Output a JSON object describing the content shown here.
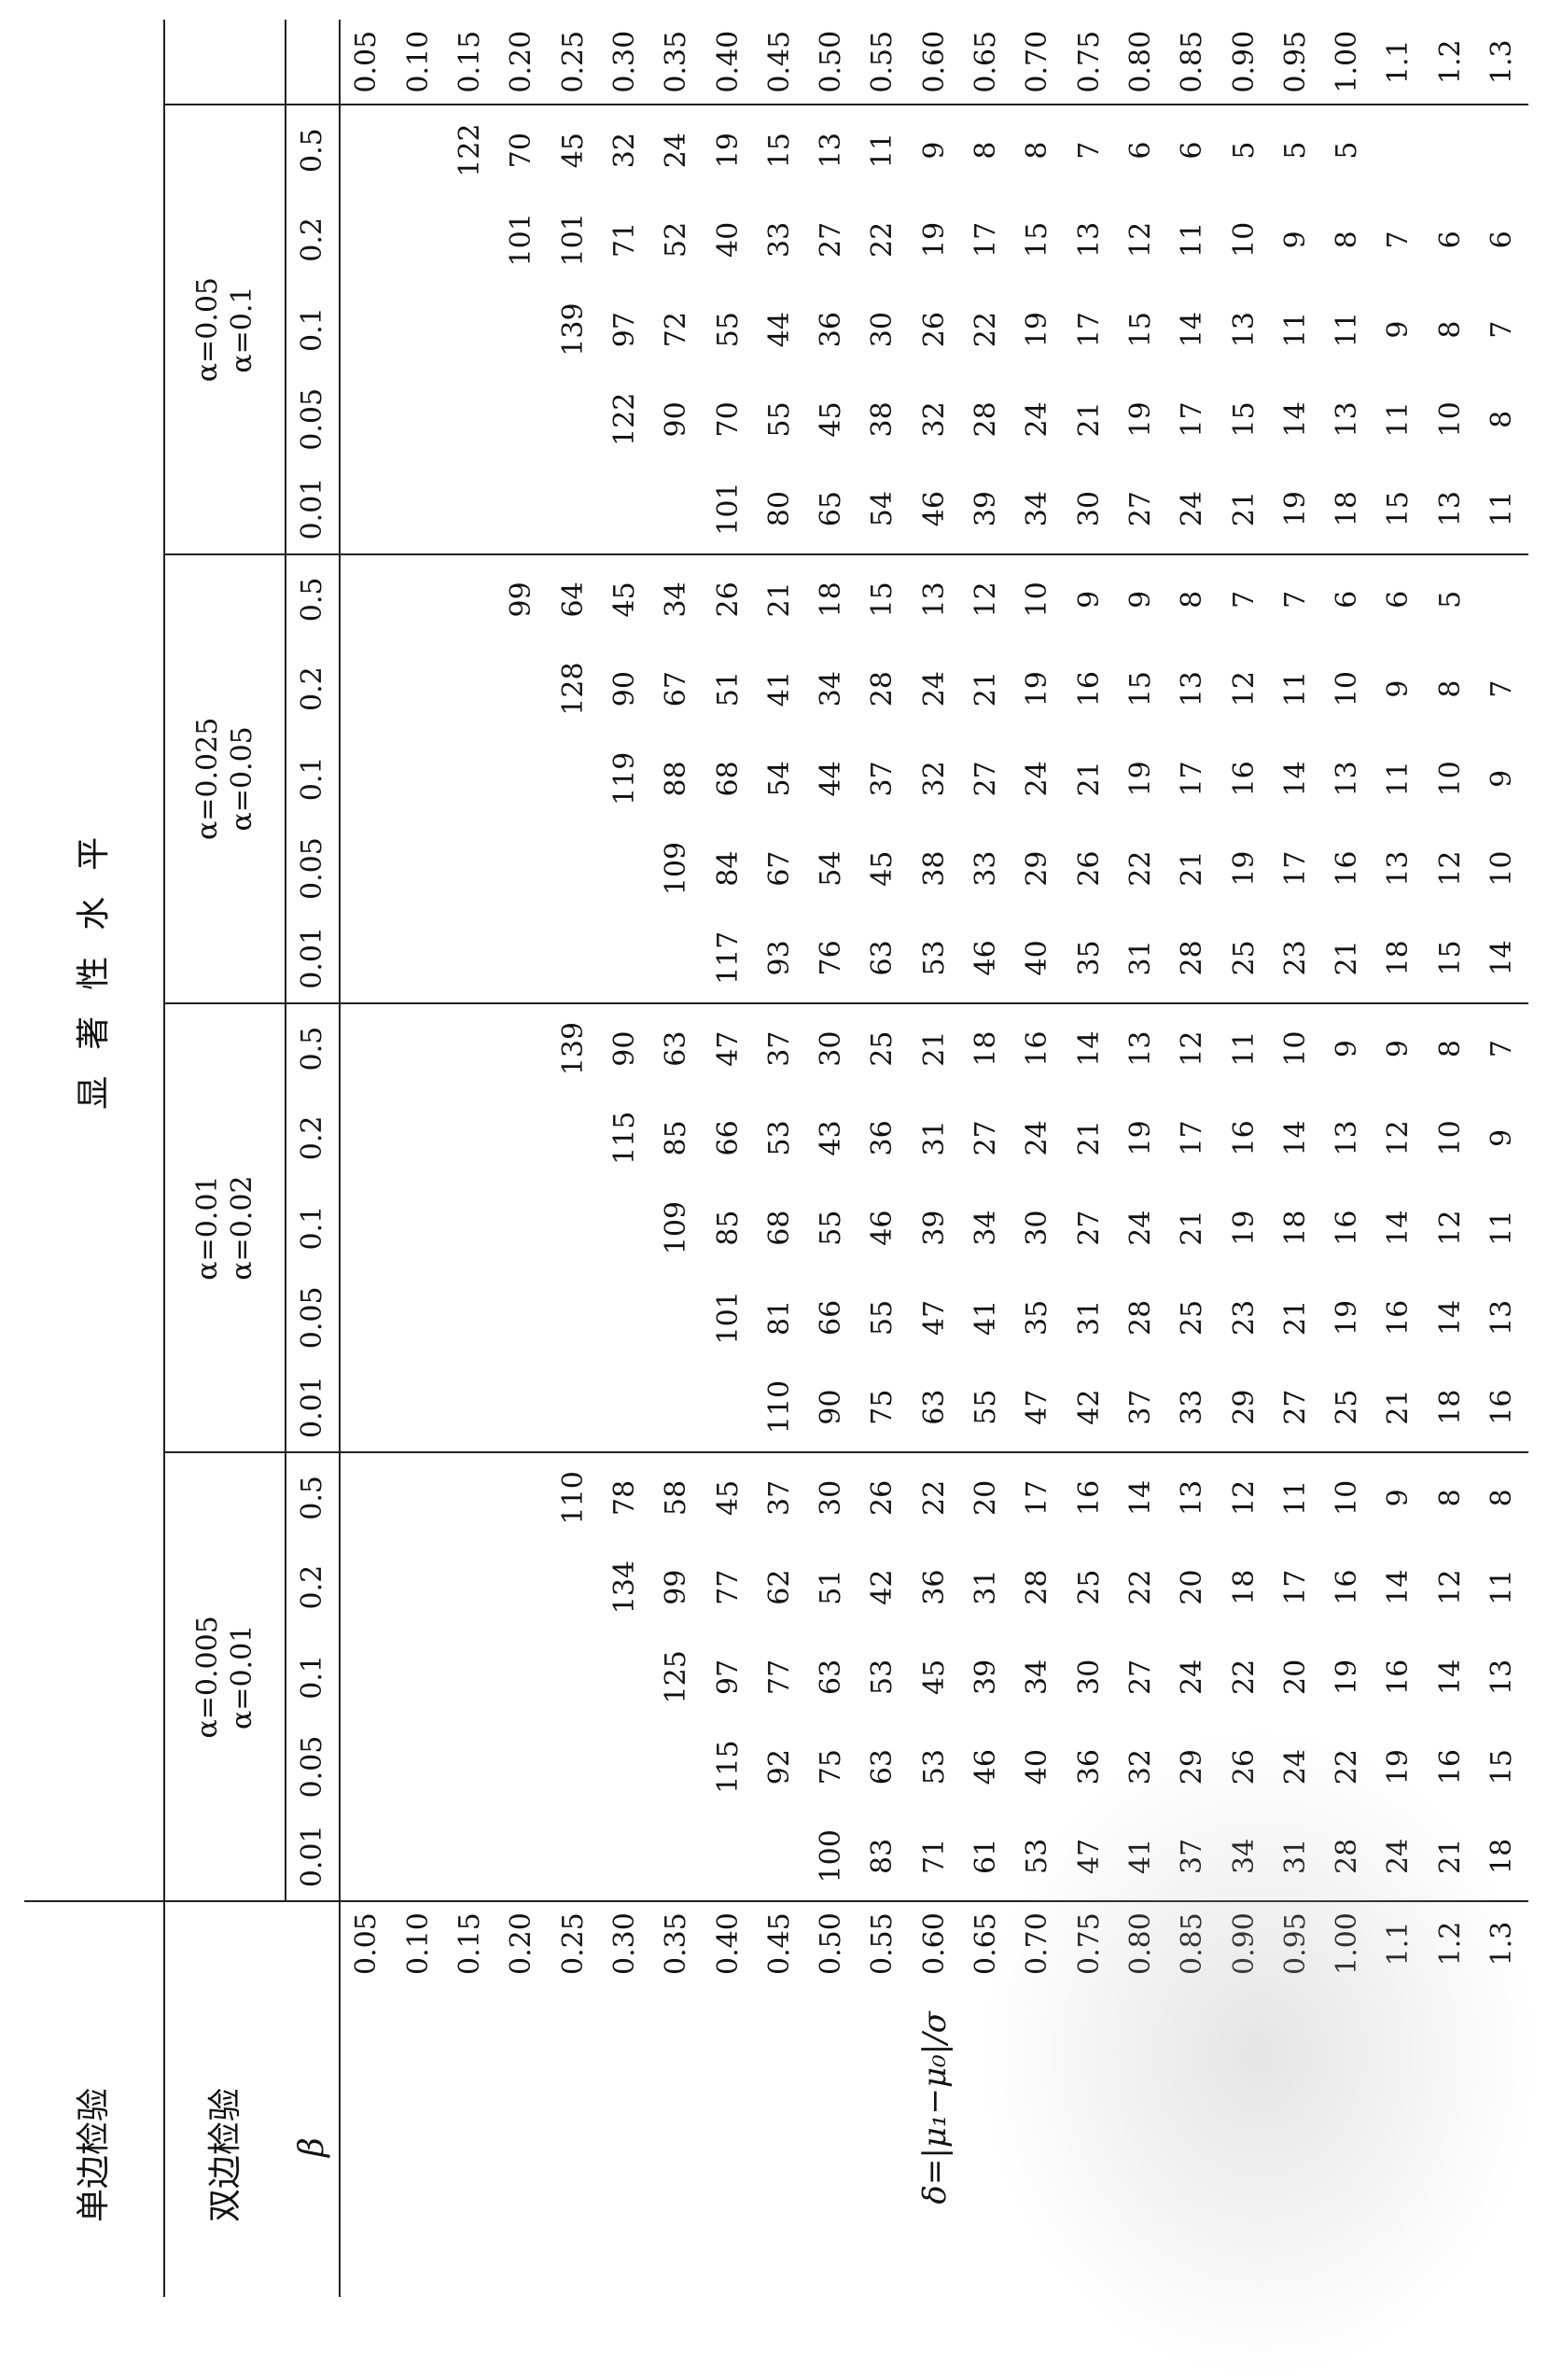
{
  "header": {
    "one_sided": "单边检验",
    "two_sided": "双边检验",
    "beta": "β",
    "significance": "显著性水平",
    "delta_formula": "δ=|μ₁−μ₀|/σ"
  },
  "groups": [
    {
      "a1": "α=0.005",
      "a2": "α=0.01"
    },
    {
      "a1": "α=0.01",
      "a2": "α=0.02"
    },
    {
      "a1": "α=0.025",
      "a2": "α=0.05"
    },
    {
      "a1": "α=0.05",
      "a2": "α=0.1"
    }
  ],
  "beta_values": [
    "0.01",
    "0.05",
    "0.1",
    "0.2",
    "0.5"
  ],
  "rows": [
    {
      "d": "0.05",
      "v": [
        "",
        "",
        "",
        "",
        "",
        "",
        "",
        "",
        "",
        "",
        "",
        "",
        "",
        "",
        "",
        "",
        "",
        "",
        "",
        ""
      ]
    },
    {
      "d": "0.10",
      "v": [
        "",
        "",
        "",
        "",
        "",
        "",
        "",
        "",
        "",
        "",
        "",
        "",
        "",
        "",
        "",
        "",
        "",
        "",
        "",
        ""
      ]
    },
    {
      "d": "0.15",
      "v": [
        "",
        "",
        "",
        "",
        "",
        "",
        "",
        "",
        "",
        "",
        "",
        "",
        "",
        "",
        "",
        "",
        "",
        "",
        "",
        "122"
      ]
    },
    {
      "d": "0.20",
      "v": [
        "",
        "",
        "",
        "",
        "",
        "",
        "",
        "",
        "",
        "",
        "",
        "",
        "",
        "",
        "99",
        "",
        "",
        "",
        "101",
        "70"
      ]
    },
    {
      "d": "0.25",
      "v": [
        "",
        "",
        "",
        "",
        "110",
        "",
        "",
        "",
        "",
        "139",
        "",
        "",
        "",
        "128",
        "64",
        "",
        "",
        "139",
        "101",
        "45"
      ]
    },
    {
      "d": "0.30",
      "v": [
        "",
        "",
        "",
        "134",
        "78",
        "",
        "",
        "",
        "115",
        "90",
        "",
        "",
        "119",
        "90",
        "45",
        "",
        "122",
        "97",
        "71",
        "32"
      ]
    },
    {
      "d": "0.35",
      "v": [
        "",
        "",
        "125",
        "99",
        "58",
        "",
        "",
        "109",
        "85",
        "63",
        "",
        "109",
        "88",
        "67",
        "34",
        "",
        "90",
        "72",
        "52",
        "24"
      ]
    },
    {
      "d": "0.40",
      "v": [
        "",
        "115",
        "97",
        "77",
        "45",
        "",
        "101",
        "85",
        "66",
        "47",
        "117",
        "84",
        "68",
        "51",
        "26",
        "101",
        "70",
        "55",
        "40",
        "19"
      ]
    },
    {
      "d": "0.45",
      "v": [
        "",
        "92",
        "77",
        "62",
        "37",
        "110",
        "81",
        "68",
        "53",
        "37",
        "93",
        "67",
        "54",
        "41",
        "21",
        "80",
        "55",
        "44",
        "33",
        "15"
      ]
    },
    {
      "d": "0.50",
      "v": [
        "100",
        "75",
        "63",
        "51",
        "30",
        "90",
        "66",
        "55",
        "43",
        "30",
        "76",
        "54",
        "44",
        "34",
        "18",
        "65",
        "45",
        "36",
        "27",
        "13"
      ]
    },
    {
      "d": "0.55",
      "v": [
        "83",
        "63",
        "53",
        "42",
        "26",
        "75",
        "55",
        "46",
        "36",
        "25",
        "63",
        "45",
        "37",
        "28",
        "15",
        "54",
        "38",
        "30",
        "22",
        "11"
      ]
    },
    {
      "d": "0.60",
      "v": [
        "71",
        "53",
        "45",
        "36",
        "22",
        "63",
        "47",
        "39",
        "31",
        "21",
        "53",
        "38",
        "32",
        "24",
        "13",
        "46",
        "32",
        "26",
        "19",
        "9"
      ]
    },
    {
      "d": "0.65",
      "v": [
        "61",
        "46",
        "39",
        "31",
        "20",
        "55",
        "41",
        "34",
        "27",
        "18",
        "46",
        "33",
        "27",
        "21",
        "12",
        "39",
        "28",
        "22",
        "17",
        "8"
      ]
    },
    {
      "d": "0.70",
      "v": [
        "53",
        "40",
        "34",
        "28",
        "17",
        "47",
        "35",
        "30",
        "24",
        "16",
        "40",
        "29",
        "24",
        "19",
        "10",
        "34",
        "24",
        "19",
        "15",
        "8"
      ]
    },
    {
      "d": "0.75",
      "v": [
        "47",
        "36",
        "30",
        "25",
        "16",
        "42",
        "31",
        "27",
        "21",
        "14",
        "35",
        "26",
        "21",
        "16",
        "9",
        "30",
        "21",
        "17",
        "13",
        "7"
      ]
    },
    {
      "d": "0.80",
      "v": [
        "41",
        "32",
        "27",
        "22",
        "14",
        "37",
        "28",
        "24",
        "19",
        "13",
        "31",
        "22",
        "19",
        "15",
        "9",
        "27",
        "19",
        "15",
        "12",
        "6"
      ]
    },
    {
      "d": "0.85",
      "v": [
        "37",
        "29",
        "24",
        "20",
        "13",
        "33",
        "25",
        "21",
        "17",
        "12",
        "28",
        "21",
        "17",
        "13",
        "8",
        "24",
        "17",
        "14",
        "11",
        "6"
      ]
    },
    {
      "d": "0.90",
      "v": [
        "34",
        "26",
        "22",
        "18",
        "12",
        "29",
        "23",
        "19",
        "16",
        "11",
        "25",
        "19",
        "16",
        "12",
        "7",
        "21",
        "15",
        "13",
        "10",
        "5"
      ]
    },
    {
      "d": "0.95",
      "v": [
        "31",
        "24",
        "20",
        "17",
        "11",
        "27",
        "21",
        "18",
        "14",
        "10",
        "23",
        "17",
        "14",
        "11",
        "7",
        "19",
        "14",
        "11",
        "9",
        "5"
      ]
    },
    {
      "d": "1.00",
      "v": [
        "28",
        "22",
        "19",
        "16",
        "10",
        "25",
        "19",
        "16",
        "13",
        "9",
        "21",
        "16",
        "13",
        "10",
        "6",
        "18",
        "13",
        "11",
        "8",
        "5"
      ]
    },
    {
      "d": "1.1",
      "v": [
        "24",
        "19",
        "16",
        "14",
        "9",
        "21",
        "16",
        "14",
        "12",
        "9",
        "18",
        "13",
        "11",
        "9",
        "6",
        "15",
        "11",
        "9",
        "7",
        ""
      ]
    },
    {
      "d": "1.2",
      "v": [
        "21",
        "16",
        "14",
        "12",
        "8",
        "18",
        "14",
        "12",
        "10",
        "8",
        "15",
        "12",
        "10",
        "8",
        "5",
        "13",
        "10",
        "8",
        "6",
        ""
      ]
    },
    {
      "d": "1.3",
      "v": [
        "18",
        "15",
        "13",
        "11",
        "8",
        "16",
        "13",
        "11",
        "9",
        "7",
        "14",
        "10",
        "9",
        "7",
        "",
        "11",
        "8",
        "7",
        "6",
        ""
      ]
    }
  ]
}
